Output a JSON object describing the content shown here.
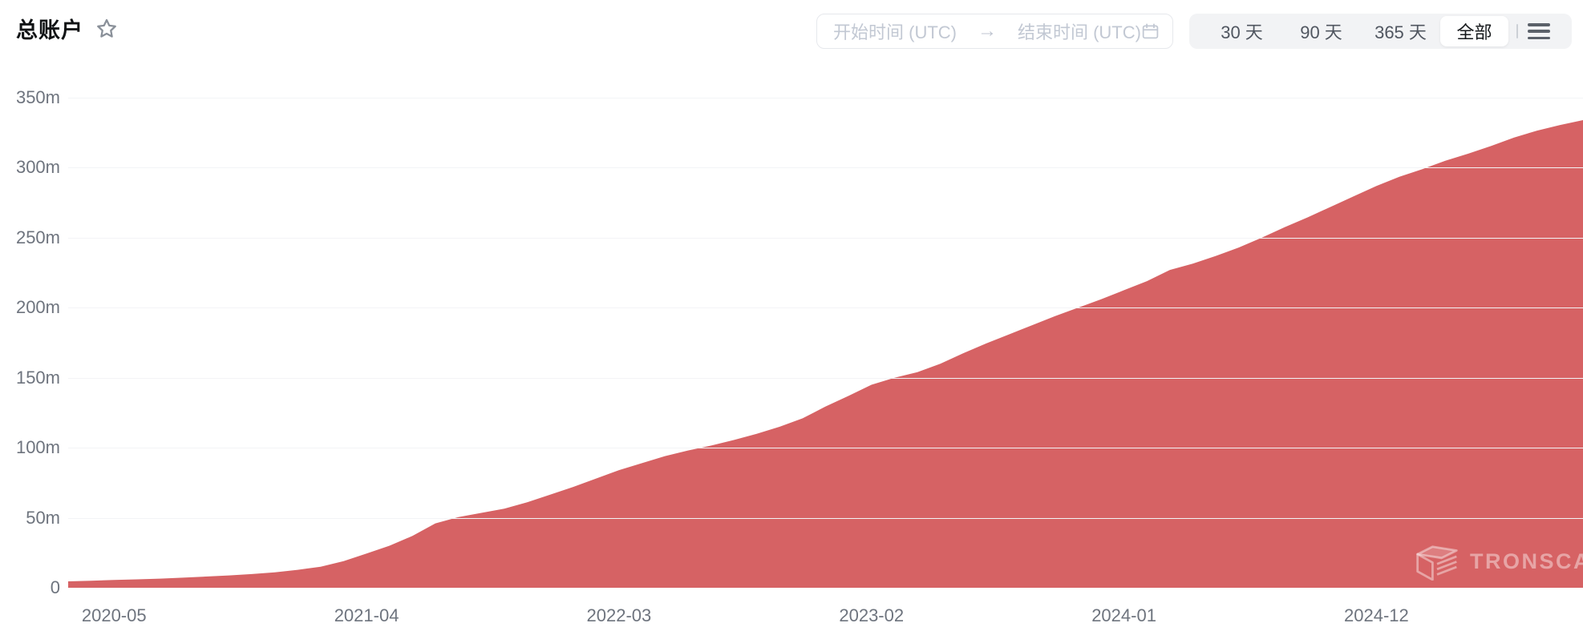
{
  "header": {
    "title": "总账户",
    "favorite_icon": "star-outline",
    "date_range": {
      "start_placeholder": "开始时间 (UTC)",
      "arrow": "→",
      "end_placeholder": "结束时间 (UTC)",
      "calendar_icon": "calendar"
    },
    "range_buttons": [
      {
        "label": "30 天",
        "active": false
      },
      {
        "label": "90 天",
        "active": false
      },
      {
        "label": "365 天",
        "active": false
      },
      {
        "label": "全部",
        "active": true
      }
    ],
    "menu_icon": "hamburger-menu"
  },
  "watermark": {
    "text": "TRONSCAN",
    "logo": "tronscan-logo"
  },
  "colors": {
    "area_fill": "#d66264",
    "grid_line": "#f3f4f6",
    "axis_label": "#6e747e",
    "placeholder_text": "#c2c8d3",
    "button_text": "#505660",
    "active_button_text": "#15181b",
    "button_group_bg": "#f2f3f5",
    "title_text": "#111315"
  },
  "chart_data": {
    "type": "area",
    "title": "总账户",
    "unit": "million accounts",
    "ylim": [
      0,
      350
    ],
    "grid": "horizontal",
    "legend": "none",
    "y_ticks": [
      "0",
      "50m",
      "100m",
      "150m",
      "200m",
      "250m",
      "300m",
      "350m"
    ],
    "x_ticks": [
      "2020-05",
      "2021-04",
      "2022-03",
      "2023-02",
      "2024-01",
      "2024-12"
    ],
    "x": [
      "2020-03",
      "2020-04",
      "2020-05",
      "2020-06",
      "2020-07",
      "2020-08",
      "2020-09",
      "2020-10",
      "2020-11",
      "2020-12",
      "2021-01",
      "2021-02",
      "2021-03",
      "2021-04",
      "2021-05",
      "2021-06",
      "2021-07",
      "2021-08",
      "2021-09",
      "2021-10",
      "2021-11",
      "2021-12",
      "2022-01",
      "2022-02",
      "2022-03",
      "2022-04",
      "2022-05",
      "2022-06",
      "2022-07",
      "2022-08",
      "2022-09",
      "2022-10",
      "2022-11",
      "2022-12",
      "2023-01",
      "2023-02",
      "2023-03",
      "2023-04",
      "2023-05",
      "2023-06",
      "2023-07",
      "2023-08",
      "2023-09",
      "2023-10",
      "2023-11",
      "2023-12",
      "2024-01",
      "2024-02",
      "2024-03",
      "2024-04",
      "2024-05",
      "2024-06",
      "2024-07",
      "2024-08",
      "2024-09",
      "2024-10",
      "2024-11",
      "2024-12",
      "2025-01",
      "2025-02",
      "2025-03",
      "2025-04",
      "2025-05",
      "2025-06",
      "2025-07",
      "2025-08",
      "2025-09"
    ],
    "series": [
      {
        "name": "总账户",
        "values_millions": [
          4.6,
          5.0,
          5.6,
          6.0,
          6.5,
          7.2,
          8.0,
          8.8,
          9.8,
          11.0,
          12.8,
          15.0,
          19.0,
          24.5,
          30.0,
          37.0,
          46.0,
          50.5,
          53.5,
          56.5,
          61.0,
          66.5,
          72.0,
          78.0,
          84.0,
          89.0,
          94.0,
          98.0,
          101.5,
          105.5,
          110.0,
          115.0,
          121.0,
          129.5,
          137.0,
          145.0,
          150.0,
          154.0,
          160.0,
          167.5,
          174.5,
          181.0,
          187.5,
          194.0,
          200.0,
          206.0,
          212.5,
          219.0,
          227.0,
          231.5,
          237.0,
          243.0,
          250.0,
          257.5,
          264.5,
          272.0,
          279.5,
          287.0,
          293.5,
          299.0,
          305.0,
          310.0,
          315.5,
          321.5,
          326.5,
          330.5,
          334.0
        ]
      }
    ]
  }
}
